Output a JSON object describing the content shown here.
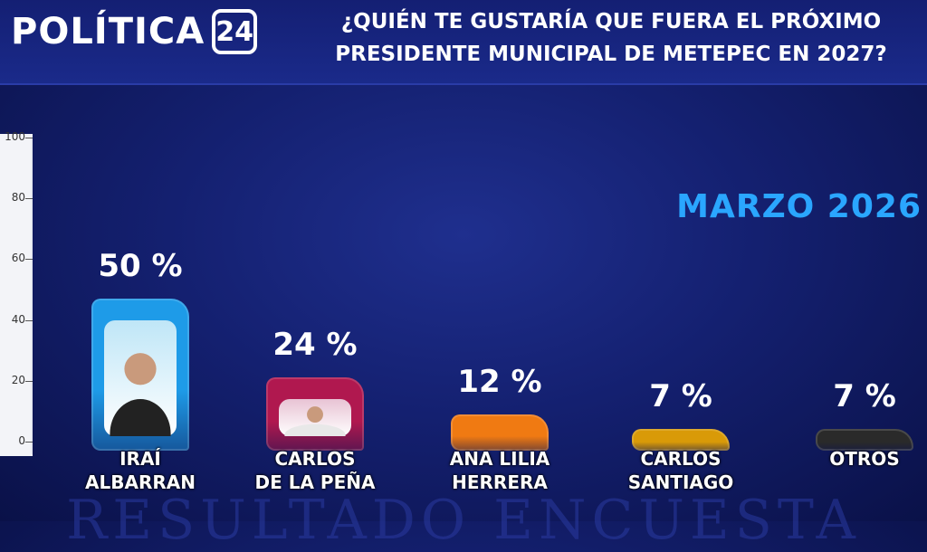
{
  "brand": {
    "name": "POLÍTICA",
    "badge": "24"
  },
  "headline": {
    "line1": "¿QUIÉN TE GUSTARÍA QUE FUERA EL PRÓXIMO",
    "line2": "PRESIDENTE MUNICIPAL DE METEPEC EN 2027?"
  },
  "period": "MARZO 2026",
  "watermark": "RESULTADO ENCUESTA",
  "chart_data": {
    "type": "bar",
    "title": "¿QUIÉN TE GUSTARÍA QUE FUERA EL PRÓXIMO PRESIDENTE MUNICIPAL DE METEPEC EN 2027?",
    "categories": [
      "IRAÍ ALBARRAN",
      "CARLOS DE LA PEÑA",
      "ANA LILIA HERRERA",
      "CARLOS SANTIAGO",
      "OTROS"
    ],
    "label_lines": [
      [
        "IRAÍ",
        "ALBARRAN"
      ],
      [
        "CARLOS",
        "DE LA PEÑA"
      ],
      [
        "ANA LILIA",
        "HERRERA"
      ],
      [
        "CARLOS",
        "SANTIAGO"
      ],
      [
        "OTROS",
        ""
      ]
    ],
    "values": [
      50,
      24,
      12,
      7,
      7
    ],
    "value_labels": [
      "50 %",
      "24 %",
      "12 %",
      "7 %",
      "7 %"
    ],
    "colors": [
      "#1e9be8",
      "#b0184f",
      "#f07a12",
      "#d99a08",
      "#2a2a2a"
    ],
    "inner_colors": [
      "#bfe6f7",
      "#e8c3d4",
      "#f6d4b0",
      "#f3d99a",
      "#777777"
    ],
    "ylim": [
      0,
      100
    ],
    "yticks": [
      "0",
      "20",
      "40",
      "60",
      "80",
      "100"
    ],
    "grid": false
  }
}
